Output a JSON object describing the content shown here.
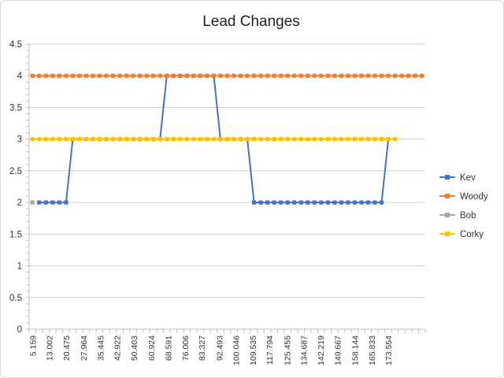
{
  "chart_data": {
    "type": "line",
    "title": "Lead Changes",
    "xlabel": "",
    "ylabel": "",
    "ylim": [
      0,
      4.5
    ],
    "yticks": [
      "0",
      "0.5",
      "1",
      "1.5",
      "2",
      "2.5",
      "3",
      "3.5",
      "4",
      "4.5"
    ],
    "grid": true,
    "legend_position": "right",
    "x_tick_labels": [
      "5.159",
      "13.002",
      "20.475",
      "27.964",
      "35.445",
      "42.922",
      "50.403",
      "60.924",
      "68.591",
      "76.006",
      "83.327",
      "92.493",
      "100.046",
      "109.535",
      "117.794",
      "125.455",
      "134.687",
      "142.219",
      "149.667",
      "158.144",
      "165.833",
      "173.554"
    ],
    "point_count": 59,
    "series": [
      {
        "name": "Kev",
        "color": "#4472c4",
        "values": [
          null,
          2,
          2,
          2,
          2,
          2,
          3,
          3,
          3,
          3,
          3,
          3,
          3,
          3,
          3,
          3,
          3,
          3,
          3,
          3,
          4,
          4,
          4,
          4,
          4,
          4,
          4,
          4,
          3,
          3,
          3,
          3,
          3,
          2,
          2,
          2,
          2,
          2,
          2,
          2,
          2,
          2,
          2,
          2,
          2,
          2,
          2,
          2,
          2,
          2,
          2,
          2,
          2,
          3,
          null,
          null,
          null,
          null,
          null
        ]
      },
      {
        "name": "Woody",
        "color": "#ed7d31",
        "values": [
          4,
          4,
          4,
          4,
          4,
          4,
          4,
          4,
          4,
          4,
          4,
          4,
          4,
          4,
          4,
          4,
          4,
          4,
          4,
          4,
          4,
          4,
          4,
          4,
          4,
          4,
          4,
          4,
          4,
          4,
          4,
          4,
          4,
          4,
          4,
          4,
          4,
          4,
          4,
          4,
          4,
          4,
          4,
          4,
          4,
          4,
          4,
          4,
          4,
          4,
          4,
          4,
          4,
          4,
          4,
          4,
          4,
          4,
          4
        ]
      },
      {
        "name": "Bob",
        "color": "#a5a5a5",
        "values": [
          2,
          null,
          null,
          null,
          null,
          null,
          null,
          null,
          null,
          null,
          null,
          null,
          null,
          null,
          null,
          null,
          null,
          null,
          null,
          null,
          null,
          null,
          null,
          null,
          null,
          null,
          null,
          null,
          null,
          null,
          null,
          null,
          null,
          null,
          null,
          null,
          null,
          null,
          null,
          null,
          null,
          null,
          null,
          null,
          null,
          null,
          null,
          null,
          null,
          null,
          null,
          null,
          null,
          null,
          null,
          null,
          null,
          null,
          null
        ]
      },
      {
        "name": "Corky",
        "color": "#ffc000",
        "values": [
          3,
          3,
          3,
          3,
          3,
          3,
          3,
          3,
          3,
          3,
          3,
          3,
          3,
          3,
          3,
          3,
          3,
          3,
          3,
          3,
          3,
          3,
          3,
          3,
          3,
          3,
          3,
          3,
          3,
          3,
          3,
          3,
          3,
          3,
          3,
          3,
          3,
          3,
          3,
          3,
          3,
          3,
          3,
          3,
          3,
          3,
          3,
          3,
          3,
          3,
          3,
          3,
          3,
          3,
          3,
          null,
          null,
          null,
          null
        ]
      }
    ]
  }
}
